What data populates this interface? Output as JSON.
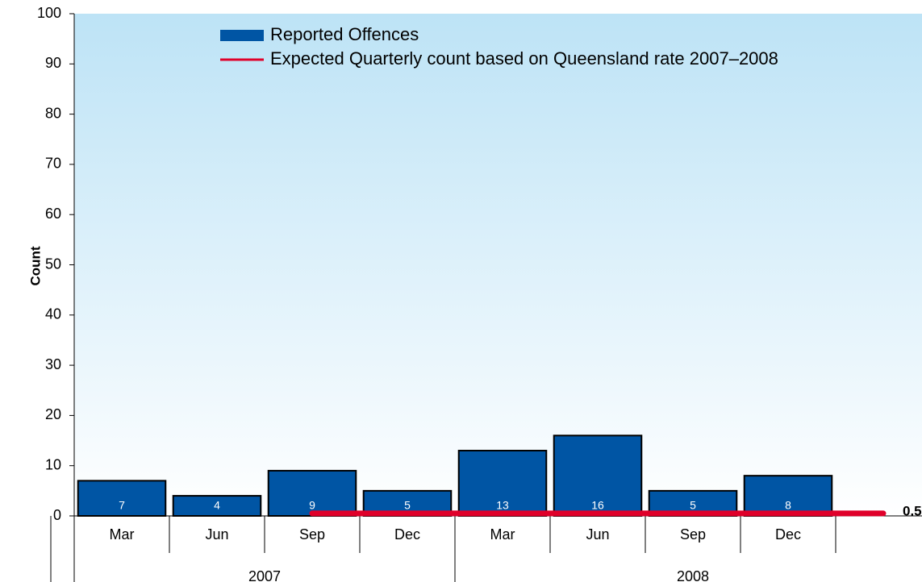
{
  "chart_data": {
    "type": "bar",
    "y_label": "Count",
    "categories": [
      "Mar",
      "Jun",
      "Sep",
      "Dec",
      "Mar",
      "Jun",
      "Sep",
      "Dec",
      null
    ],
    "groups": [
      {
        "label": "2007",
        "count": 4
      },
      {
        "label": "2008",
        "count": 5
      }
    ],
    "series": [
      {
        "name": "Reported Offences",
        "type": "bar",
        "color": "#0055a4",
        "values": [
          7,
          4,
          9,
          5,
          13,
          16,
          5,
          8,
          null
        ]
      },
      {
        "name": "Expected Quarterly count based on Queensland rate 2007–2008",
        "type": "line",
        "color": "#e0002a",
        "values": [
          null,
          null,
          0.5,
          0.5,
          0.5,
          0.5,
          0.5,
          0.5,
          0.5
        ]
      }
    ],
    "ylim": [
      0,
      100
    ],
    "yticks": [
      0,
      10,
      20,
      30,
      40,
      50,
      60,
      70,
      80,
      90,
      100
    ],
    "legend": "top"
  }
}
